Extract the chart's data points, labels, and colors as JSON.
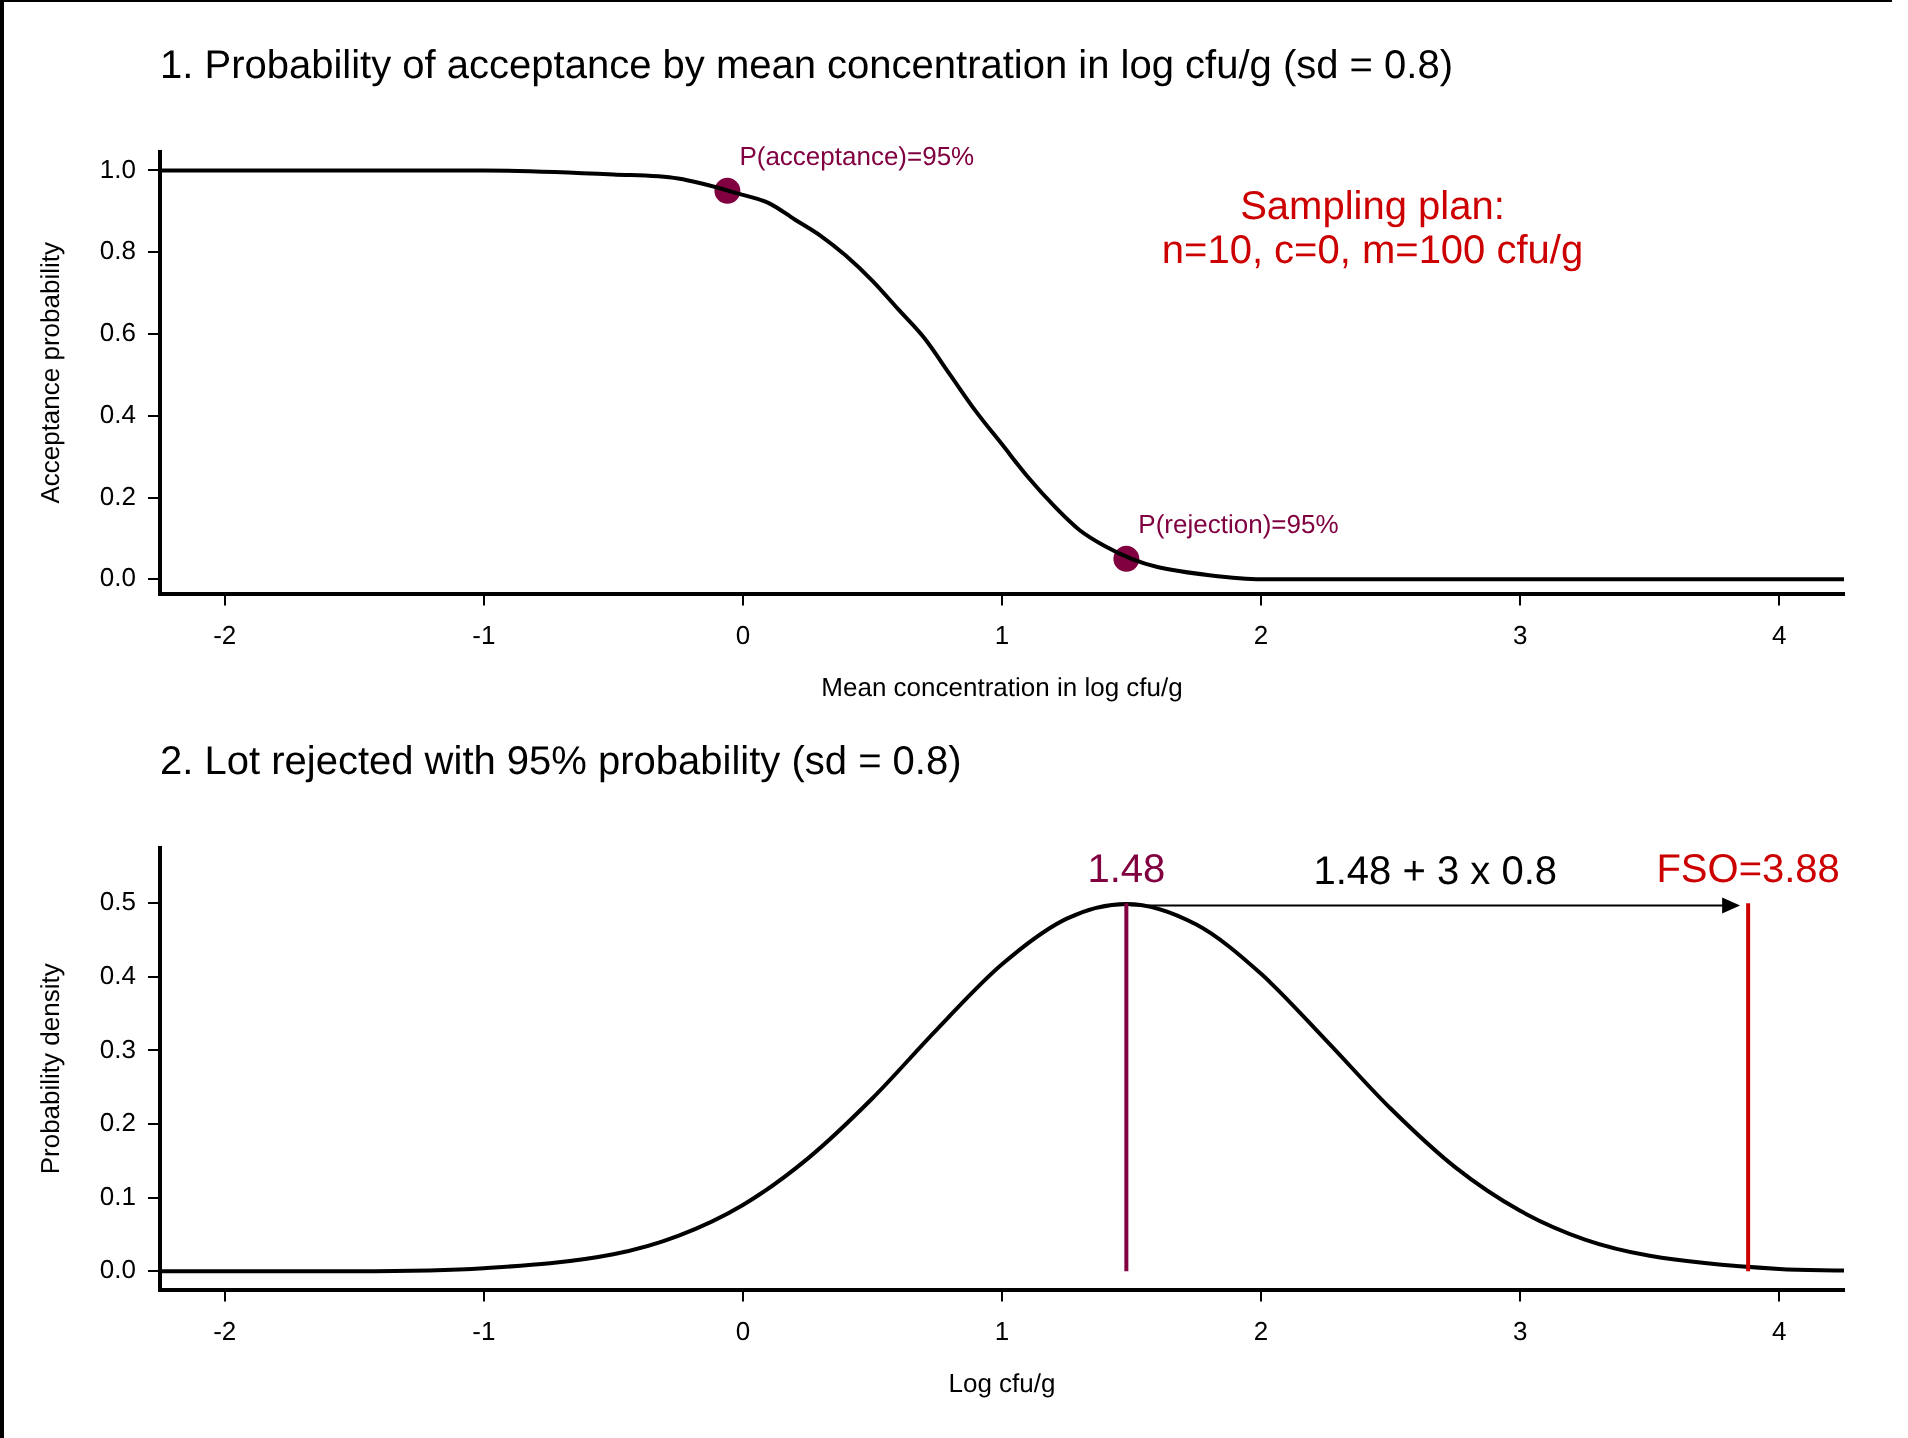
{
  "chart_data": [
    {
      "type": "line",
      "title": "1. Probability of acceptance by mean concentration in log cfu/g (sd = 0.8)",
      "xlabel": "Mean concentration in log cfu/g",
      "ylabel": "Acceptance probability",
      "xlim": [
        -2.25,
        4.25
      ],
      "xticks": [
        -2,
        -1,
        0,
        1,
        2,
        3,
        4
      ],
      "ylim": [
        -0.035,
        1.045
      ],
      "yticks": [
        {
          "value": 0,
          "label": "0.0"
        },
        {
          "value": 0.2,
          "label": "0.2"
        },
        {
          "value": 0.4,
          "label": "0.4"
        },
        {
          "value": 0.6,
          "label": "0.6"
        },
        {
          "value": 0.8,
          "label": "0.8"
        },
        {
          "value": 1,
          "label": "1.0"
        }
      ],
      "grid": false,
      "legend": false,
      "series": [
        {
          "color": "#000000",
          "marker": "none",
          "x": [
            -2.25,
            -1,
            -0.5,
            -0.25,
            0,
            0.1,
            0.2,
            0.3,
            0.4,
            0.5,
            0.6,
            0.7,
            0.8,
            0.9,
            1.0,
            1.1,
            1.2,
            1.3,
            1.4,
            1.5,
            1.6,
            1.8,
            2.0,
            2.5,
            3,
            4.25
          ],
          "values": [
            1,
            1,
            0.99,
            0.98,
            0.94,
            0.92,
            0.88,
            0.84,
            0.79,
            0.73,
            0.66,
            0.59,
            0.5,
            0.41,
            0.33,
            0.25,
            0.18,
            0.12,
            0.08,
            0.05,
            0.03,
            0.01,
            0,
            0,
            0,
            0
          ]
        },
        {
          "type": "scatter",
          "color": "#800040",
          "marker": "circle",
          "x": [
            -0.06,
            1.48
          ],
          "values": [
            0.95,
            0.05
          ]
        }
      ],
      "annotations": [
        {
          "text": "P(acceptance)=95%",
          "x": -0.06,
          "y": 0.95
        },
        {
          "text": "P(rejection)=95%",
          "x": 1.48,
          "y": 0.05
        },
        "Sampling plan:",
        "n=10, c=0, m=100 cfu/g"
      ]
    },
    {
      "type": "line",
      "title": "2. Lot rejected with 95% probability (sd = 0.8)",
      "xlabel": "Log cfu/g",
      "ylabel": "Probability density",
      "xlim": [
        -2.25,
        4.25
      ],
      "xticks": [
        -2,
        -1,
        0,
        1,
        2,
        3,
        4
      ],
      "ylim": [
        -0.025,
        0.575
      ],
      "yticks": [
        {
          "value": 0,
          "label": "0.0"
        },
        {
          "value": 0.1,
          "label": "0.1"
        },
        {
          "value": 0.2,
          "label": "0.2"
        },
        {
          "value": 0.3,
          "label": "0.3"
        },
        {
          "value": 0.4,
          "label": "0.4"
        },
        {
          "value": 0.5,
          "label": "0.5"
        }
      ],
      "grid": false,
      "legend": false,
      "series": [
        {
          "color": "#000000",
          "marker": "none",
          "x": [
            -2.25,
            -1.5,
            -1,
            -0.5,
            -0.25,
            0,
            0.25,
            0.5,
            0.75,
            1.0,
            1.25,
            1.48,
            1.75,
            2.0,
            2.25,
            2.5,
            2.75,
            3.0,
            3.25,
            3.5,
            4,
            4.25
          ],
          "values": [
            0,
            0,
            0.004,
            0.023,
            0.048,
            0.09,
            0.153,
            0.235,
            0.329,
            0.417,
            0.479,
            0.499,
            0.471,
            0.404,
            0.314,
            0.221,
            0.141,
            0.082,
            0.043,
            0.021,
            0.003,
            0.001
          ]
        }
      ],
      "ref_lines": [
        {
          "axis": "x",
          "value": 1.48,
          "label": "1.48",
          "color": "#800040"
        },
        {
          "axis": "x",
          "value": 3.88,
          "label": "FSO=3.88",
          "color": "#cc0000"
        }
      ],
      "annotations": [
        "1.48 + 3 x 0.8"
      ]
    }
  ]
}
